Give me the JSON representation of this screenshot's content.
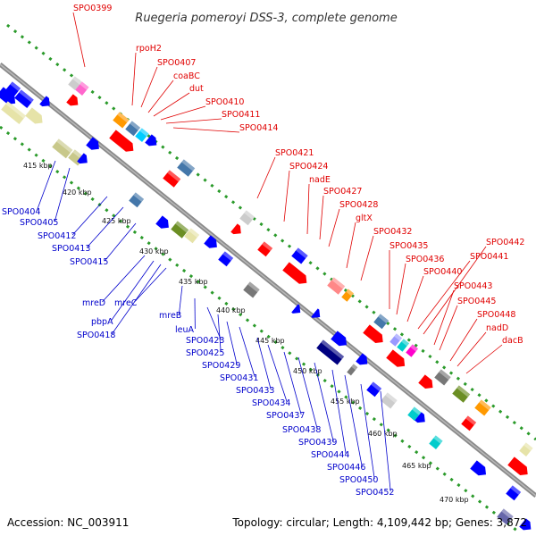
{
  "title": "Ruegeria pomeroyi DSS-3, complete genome",
  "accession_label": "Accession:",
  "accession": "NC_003911",
  "topology_text": "Topology: circular; Length: 4,109,442 bp; Genes: 3,872",
  "colors": {
    "forward_label": "#e00000",
    "reverse_label": "#0000cc",
    "backbone": "#888888",
    "track_dots": "#2a9a2a"
  },
  "kbp_ticks": [
    "415 kbp",
    "420 kbp",
    "425 kbp",
    "430 kbp",
    "435 kbp",
    "440 kbp",
    "445 kbp",
    "450 kbp",
    "455 kbp",
    "460 kbp",
    "465 kbp",
    "470 kbp"
  ],
  "forward_labels": [
    "SPO0399",
    "rpoH2",
    "SPO0407",
    "coaBC",
    "dut",
    "SPO0410",
    "SPO0411",
    "SPO0414",
    "SPO0421",
    "SPO0424",
    "nadE",
    "SPO0427",
    "SPO0428",
    "gltX",
    "SPO0432",
    "SPO0435",
    "SPO0436",
    "SPO0440",
    "SPO0442",
    "SPO0441",
    "SPO0443",
    "SPO0445",
    "SPO0448",
    "nadD",
    "dacB"
  ],
  "reverse_labels": [
    "SPO0404",
    "SPO0405",
    "SPO0412",
    "SPO0413",
    "SPO0415",
    "mreD",
    "pbpA",
    "SPO0418",
    "mreC",
    "mreB",
    "leuA",
    "SPO0423",
    "SPO0425",
    "SPO0429",
    "SPO0431",
    "SPO0433",
    "SPO0434",
    "SPO0437",
    "SPO0438",
    "SPO0439",
    "SPO0444",
    "SPO0446",
    "SPO0450",
    "SPO0452"
  ]
}
